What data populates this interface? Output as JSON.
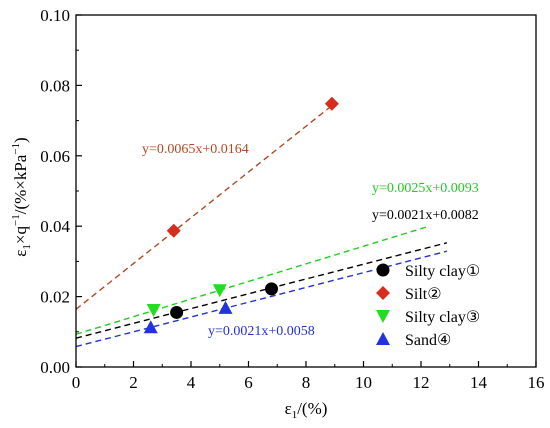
{
  "chart_data": {
    "type": "scatter",
    "xlabel": "ε1/(%)",
    "ylabel": "ε1×q−1/(%×kPa−1)",
    "xlim": [
      0,
      16
    ],
    "ylim": [
      0.0,
      0.1
    ],
    "xticks": [
      "0",
      "2",
      "4",
      "6",
      "8",
      "10",
      "12",
      "14",
      "16"
    ],
    "yticks": [
      "0.00",
      "0.02",
      "0.04",
      "0.06",
      "0.08",
      "0.10"
    ],
    "legend_position": "right",
    "series": [
      {
        "name": "Silty clay①",
        "marker": "circle",
        "color": "#000000",
        "points": [
          [
            3.5,
            0.0155
          ],
          [
            6.8,
            0.0222
          ]
        ],
        "fit": {
          "label": "y=0.0021x+0.0082",
          "slope": 0.0021,
          "intercept": 0.0082,
          "x_range": [
            0,
            12.9
          ],
          "color": "#000000"
        }
      },
      {
        "name": "Silt②",
        "marker": "diamond",
        "color": "#d62d1f",
        "points": [
          [
            3.4,
            0.0387
          ],
          [
            8.9,
            0.0748
          ]
        ],
        "fit": {
          "label": "y=0.0065x+0.0164",
          "slope": 0.0065,
          "intercept": 0.0164,
          "x_range": [
            0,
            9.0
          ],
          "color": "#b04a25"
        }
      },
      {
        "name": "Silty clay③",
        "marker": "triangle-down",
        "color": "#22dd22",
        "points": [
          [
            2.7,
            0.0162
          ],
          [
            5.0,
            0.0218
          ]
        ],
        "fit": {
          "label": "y=0.0025x+0.0093",
          "slope": 0.0025,
          "intercept": 0.0093,
          "x_range": [
            0,
            12.3
          ],
          "color": "#22cc22"
        }
      },
      {
        "name": "Sand④",
        "marker": "triangle-up",
        "color": "#2233dd",
        "points": [
          [
            2.6,
            0.0113
          ],
          [
            5.2,
            0.0168
          ]
        ],
        "fit": {
          "label": "y=0.0021x+0.0058",
          "slope": 0.0021,
          "intercept": 0.0058,
          "x_range": [
            0,
            12.9
          ],
          "color": "#2233cc"
        }
      }
    ]
  }
}
